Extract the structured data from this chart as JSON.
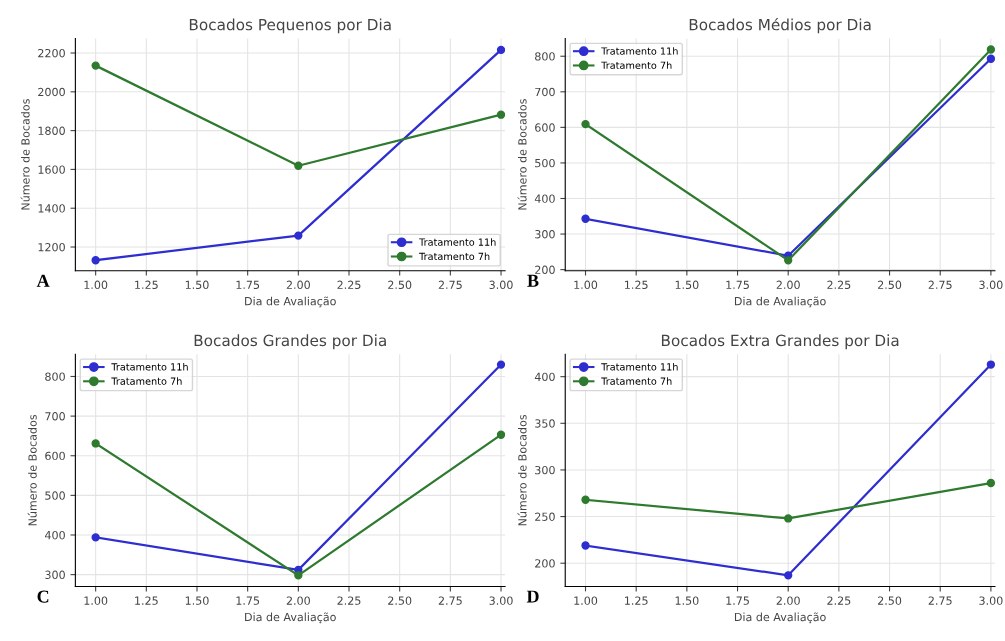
{
  "chart_data": [
    {
      "type": "line",
      "title": "Bocados Pequenos por Dia",
      "xlabel": "Dia de Avaliação",
      "ylabel": "Número de Bocados",
      "annotations": [
        "A"
      ],
      "x": [
        1,
        2,
        3
      ],
      "xlim": [
        0.9,
        3.02
      ],
      "xticks": [
        {
          "value": 1,
          "label": "1.00"
        },
        {
          "value": 1.25,
          "label": "1.25"
        },
        {
          "value": 1.5,
          "label": "1.50"
        },
        {
          "value": 1.75,
          "label": "1.75"
        },
        {
          "value": 2,
          "label": "2.00"
        },
        {
          "value": 2.25,
          "label": "2.25"
        },
        {
          "value": 2.5,
          "label": "2.50"
        },
        {
          "value": 2.75,
          "label": "2.75"
        },
        {
          "value": 3,
          "label": "3.00"
        }
      ],
      "ylim": [
        1078,
        2275
      ],
      "yticks": [
        1200,
        1400,
        1600,
        1800,
        2000,
        2200
      ],
      "grid": true,
      "legend": "lower right",
      "marker": "circle",
      "line_style": "solid",
      "series": [
        {
          "name": "Tratamento 11h",
          "color": "#2e2ed0",
          "values": [
            1132,
            1259,
            2216
          ]
        },
        {
          "name": "Tratamento 7h",
          "color": "#2e7a2e",
          "values": [
            2135,
            1619,
            1882
          ]
        }
      ]
    },
    {
      "type": "line",
      "title": "Bocados Médios por Dia",
      "xlabel": "Dia de Avaliação",
      "ylabel": "Número de Bocados",
      "annotations": [
        "B"
      ],
      "x": [
        1,
        2,
        3
      ],
      "xlim": [
        0.9,
        3.02
      ],
      "xticks": [
        {
          "value": 1,
          "label": "1.00"
        },
        {
          "value": 1.25,
          "label": "1.25"
        },
        {
          "value": 1.5,
          "label": "1.50"
        },
        {
          "value": 1.75,
          "label": "1.75"
        },
        {
          "value": 2,
          "label": "2.00"
        },
        {
          "value": 2.25,
          "label": "2.25"
        },
        {
          "value": 2.5,
          "label": "2.50"
        },
        {
          "value": 2.75,
          "label": "2.75"
        },
        {
          "value": 3,
          "label": "3.00"
        }
      ],
      "ylim": [
        197,
        850
      ],
      "yticks": [
        200,
        300,
        400,
        500,
        600,
        700,
        800
      ],
      "grid": true,
      "legend": "upper left",
      "marker": "circle",
      "line_style": "solid",
      "series": [
        {
          "name": "Tratamento 11h",
          "color": "#2e2ed0",
          "values": [
            343,
            239,
            793
          ]
        },
        {
          "name": "Tratamento 7h",
          "color": "#2e7a2e",
          "values": [
            609,
            226,
            819
          ]
        }
      ]
    },
    {
      "type": "line",
      "title": "Bocados Grandes por Dia",
      "xlabel": "Dia de Avaliação",
      "ylabel": "Número de Bocados",
      "annotations": [
        "C"
      ],
      "x": [
        1,
        2,
        3
      ],
      "xlim": [
        0.9,
        3.02
      ],
      "xticks": [
        {
          "value": 1,
          "label": "1.00"
        },
        {
          "value": 1.25,
          "label": "1.25"
        },
        {
          "value": 1.5,
          "label": "1.50"
        },
        {
          "value": 1.75,
          "label": "1.75"
        },
        {
          "value": 2,
          "label": "2.00"
        },
        {
          "value": 2.25,
          "label": "2.25"
        },
        {
          "value": 2.5,
          "label": "2.50"
        },
        {
          "value": 2.75,
          "label": "2.75"
        },
        {
          "value": 3,
          "label": "3.00"
        }
      ],
      "ylim": [
        270,
        856
      ],
      "yticks": [
        300,
        400,
        500,
        600,
        700,
        800
      ],
      "grid": true,
      "legend": "upper left",
      "marker": "circle",
      "line_style": "solid",
      "series": [
        {
          "name": "Tratamento 11h",
          "color": "#2e2ed0",
          "values": [
            394,
            312,
            830
          ]
        },
        {
          "name": "Tratamento 7h",
          "color": "#2e7a2e",
          "values": [
            631,
            298,
            653
          ]
        }
      ]
    },
    {
      "type": "line",
      "title": "Bocados Extra Grandes por Dia",
      "xlabel": "Dia de Avaliação",
      "ylabel": "Número de Bocados",
      "annotations": [
        "D"
      ],
      "x": [
        1,
        2,
        3
      ],
      "xlim": [
        0.9,
        3.02
      ],
      "xticks": [
        {
          "value": 1,
          "label": "1.00"
        },
        {
          "value": 1.25,
          "label": "1.25"
        },
        {
          "value": 1.5,
          "label": "1.50"
        },
        {
          "value": 1.75,
          "label": "1.75"
        },
        {
          "value": 2,
          "label": "2.00"
        },
        {
          "value": 2.25,
          "label": "2.25"
        },
        {
          "value": 2.5,
          "label": "2.50"
        },
        {
          "value": 2.75,
          "label": "2.75"
        },
        {
          "value": 3,
          "label": "3.00"
        }
      ],
      "ylim": [
        175,
        424
      ],
      "yticks": [
        200,
        250,
        300,
        350,
        400
      ],
      "grid": true,
      "legend": "upper left",
      "marker": "circle",
      "line_style": "solid",
      "series": [
        {
          "name": "Tratamento 11h",
          "color": "#2e2ed0",
          "values": [
            219,
            187,
            413
          ]
        },
        {
          "name": "Tratamento 7h",
          "color": "#2e7a2e",
          "values": [
            268,
            248,
            286
          ]
        }
      ]
    }
  ]
}
